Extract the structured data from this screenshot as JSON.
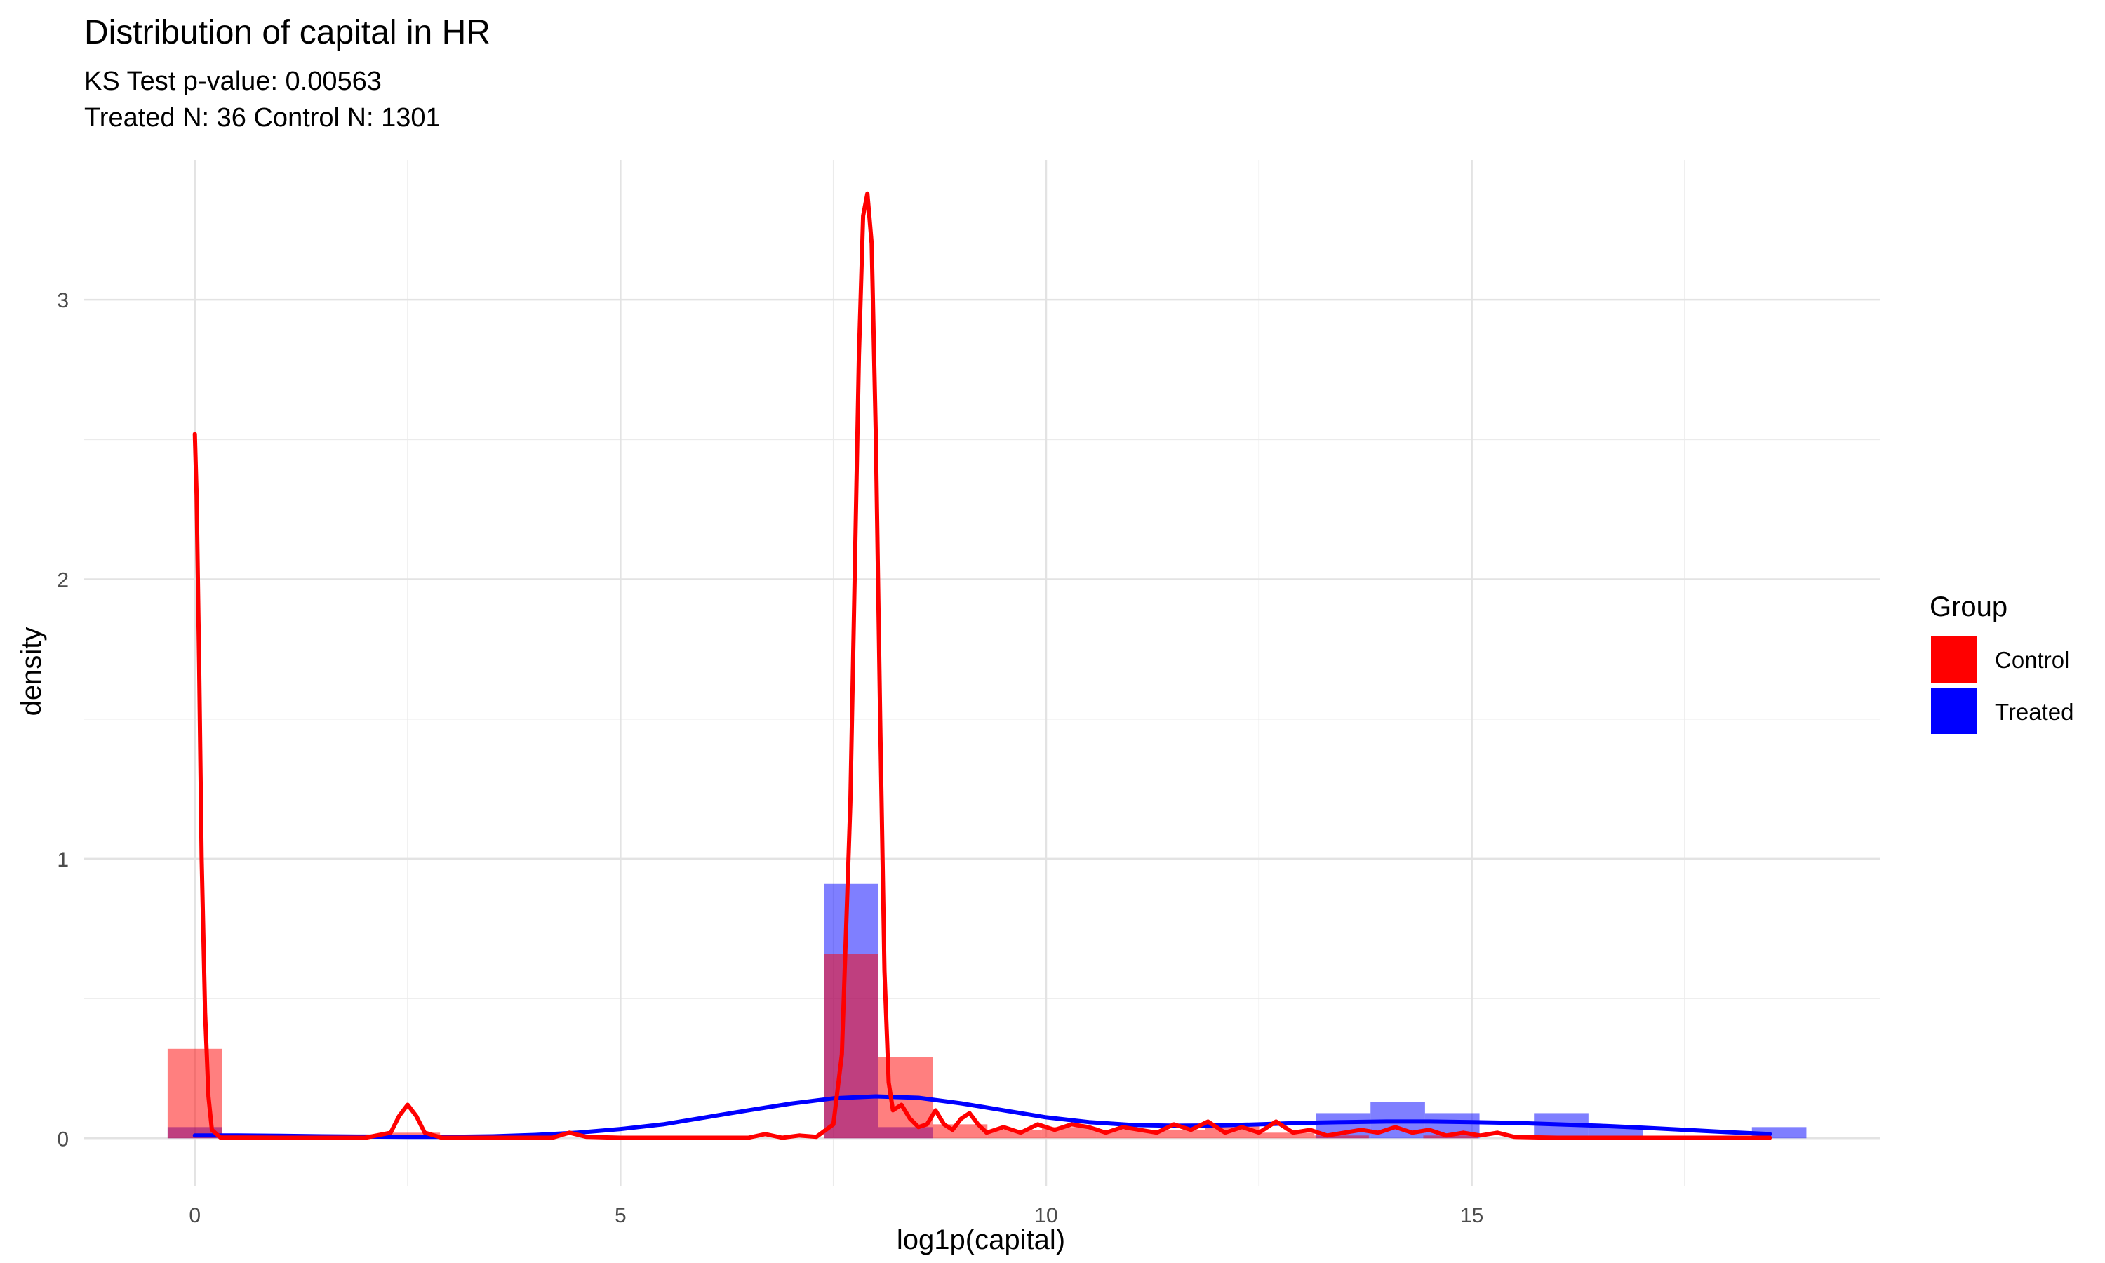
{
  "chart_data": {
    "type": "histogram-density",
    "title": "Distribution of capital in HR",
    "subtitle_lines": [
      "KS Test p-value: 0.00563",
      "Treated N: 36 Control N: 1301"
    ],
    "xlabel": "log1p(capital)",
    "ylabel": "density",
    "xlim": [
      -1.3,
      19.8
    ],
    "ylim": [
      -0.17,
      3.5
    ],
    "x_ticks": [
      0,
      5,
      10,
      15
    ],
    "y_ticks": [
      0,
      1,
      2,
      3
    ],
    "x_minor": [
      2.5,
      7.5,
      12.5,
      17.5
    ],
    "y_minor": [
      0.5,
      1.5,
      2.5
    ],
    "grid": true,
    "legend": {
      "title": "Group",
      "position": "right",
      "items": [
        {
          "label": "Control",
          "color": "#FF0000"
        },
        {
          "label": "Treated",
          "color": "#0000FF"
        }
      ]
    },
    "histograms": [
      {
        "name": "Treated",
        "color": "#0000FF",
        "opacity": 0.5,
        "bins": [
          {
            "x0": -0.32,
            "x1": 0.32,
            "density": 0.04
          },
          {
            "x0": 7.39,
            "x1": 8.03,
            "density": 0.91
          },
          {
            "x0": 8.03,
            "x1": 8.67,
            "density": 0.04
          },
          {
            "x0": 13.17,
            "x1": 13.81,
            "density": 0.09
          },
          {
            "x0": 13.81,
            "x1": 14.45,
            "density": 0.13
          },
          {
            "x0": 14.45,
            "x1": 15.09,
            "density": 0.09
          },
          {
            "x0": 15.73,
            "x1": 16.37,
            "density": 0.09
          },
          {
            "x0": 16.37,
            "x1": 17.01,
            "density": 0.04
          },
          {
            "x0": 18.29,
            "x1": 18.93,
            "density": 0.04
          }
        ]
      },
      {
        "name": "Control",
        "color": "#FF0000",
        "opacity": 0.5,
        "bins": [
          {
            "x0": -0.32,
            "x1": 0.32,
            "density": 0.32
          },
          {
            "x0": 0.32,
            "x1": 0.96,
            "density": 0.01
          },
          {
            "x0": 2.24,
            "x1": 2.88,
            "density": 0.02
          },
          {
            "x0": 7.39,
            "x1": 8.03,
            "density": 0.66
          },
          {
            "x0": 8.03,
            "x1": 8.67,
            "density": 0.29
          },
          {
            "x0": 8.67,
            "x1": 9.31,
            "density": 0.05
          },
          {
            "x0": 9.31,
            "x1": 9.95,
            "density": 0.03
          },
          {
            "x0": 9.95,
            "x1": 10.59,
            "density": 0.04
          },
          {
            "x0": 10.59,
            "x1": 11.23,
            "density": 0.03
          },
          {
            "x0": 11.23,
            "x1": 11.87,
            "density": 0.03
          },
          {
            "x0": 11.87,
            "x1": 12.51,
            "density": 0.05
          },
          {
            "x0": 12.51,
            "x1": 13.15,
            "density": 0.02
          },
          {
            "x0": 13.15,
            "x1": 13.79,
            "density": 0.01
          },
          {
            "x0": 14.43,
            "x1": 15.07,
            "density": 0.01
          }
        ]
      }
    ],
    "density_lines": [
      {
        "name": "Treated",
        "color": "#0000FF",
        "x": [
          0,
          0.5,
          1,
          1.5,
          2,
          2.5,
          3,
          3.5,
          4,
          4.5,
          5,
          5.5,
          6,
          6.5,
          7,
          7.5,
          8,
          8.5,
          9,
          9.5,
          10,
          10.5,
          11,
          11.5,
          12,
          12.5,
          13,
          13.5,
          14,
          14.5,
          15,
          15.5,
          16,
          16.5,
          17,
          17.5,
          18,
          18.5
        ],
        "y": [
          0.01,
          0.01,
          0.009,
          0.007,
          0.006,
          0.005,
          0.005,
          0.007,
          0.012,
          0.02,
          0.033,
          0.05,
          0.075,
          0.1,
          0.124,
          0.143,
          0.15,
          0.145,
          0.125,
          0.1,
          0.075,
          0.058,
          0.048,
          0.045,
          0.046,
          0.05,
          0.055,
          0.058,
          0.06,
          0.06,
          0.058,
          0.055,
          0.05,
          0.045,
          0.038,
          0.03,
          0.022,
          0.015
        ]
      },
      {
        "name": "Control",
        "color": "#FF0000",
        "x": [
          0,
          0.02,
          0.05,
          0.08,
          0.12,
          0.16,
          0.2,
          0.3,
          1,
          2,
          2.3,
          2.4,
          2.5,
          2.6,
          2.7,
          2.9,
          4.2,
          4.4,
          4.6,
          5,
          6.5,
          6.7,
          6.9,
          7.1,
          7.3,
          7.5,
          7.6,
          7.7,
          7.8,
          7.85,
          7.9,
          7.95,
          8,
          8.05,
          8.1,
          8.15,
          8.2,
          8.3,
          8.4,
          8.5,
          8.6,
          8.7,
          8.8,
          8.9,
          9,
          9.1,
          9.2,
          9.3,
          9.5,
          9.7,
          9.9,
          10.1,
          10.3,
          10.5,
          10.7,
          10.9,
          11.1,
          11.3,
          11.5,
          11.7,
          11.9,
          12.1,
          12.3,
          12.5,
          12.7,
          12.9,
          13.1,
          13.3,
          13.5,
          13.7,
          13.9,
          14.1,
          14.3,
          14.5,
          14.7,
          14.9,
          15.1,
          15.3,
          15.5,
          16,
          17,
          18,
          18.5
        ],
        "y": [
          2.52,
          2.3,
          1.7,
          1.0,
          0.45,
          0.15,
          0.03,
          0.003,
          0.002,
          0.002,
          0.02,
          0.08,
          0.12,
          0.08,
          0.02,
          0.002,
          0.002,
          0.02,
          0.005,
          0.002,
          0.002,
          0.015,
          0.002,
          0.01,
          0.005,
          0.05,
          0.3,
          1.2,
          2.8,
          3.3,
          3.38,
          3.2,
          2.5,
          1.5,
          0.6,
          0.2,
          0.1,
          0.12,
          0.07,
          0.04,
          0.05,
          0.1,
          0.05,
          0.03,
          0.07,
          0.09,
          0.05,
          0.02,
          0.04,
          0.02,
          0.05,
          0.03,
          0.05,
          0.04,
          0.02,
          0.04,
          0.03,
          0.02,
          0.05,
          0.03,
          0.06,
          0.02,
          0.04,
          0.02,
          0.06,
          0.02,
          0.03,
          0.01,
          0.02,
          0.03,
          0.02,
          0.04,
          0.02,
          0.03,
          0.01,
          0.02,
          0.01,
          0.02,
          0.005,
          0.002,
          0.002,
          0.002,
          0.002
        ]
      }
    ]
  }
}
